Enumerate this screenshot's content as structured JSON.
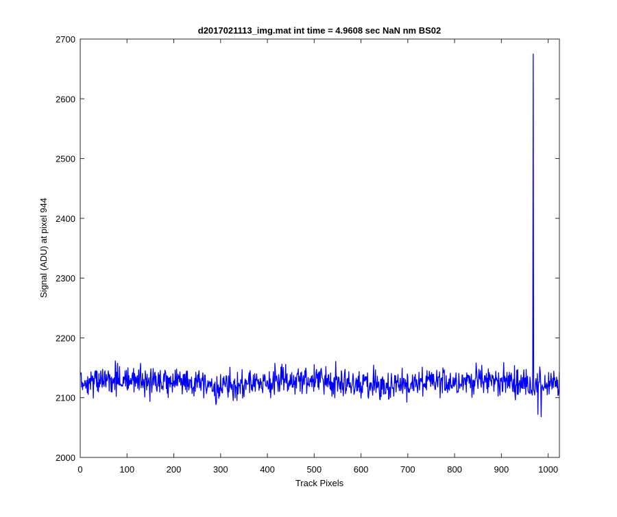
{
  "chart_data": {
    "type": "line",
    "title": "d2017021113_img.mat int time = 4.9608 sec  NaN nm BS02",
    "xlabel": "Track Pixels",
    "ylabel": "Signal (ADU) at pixel 944",
    "xlim": [
      0,
      1024
    ],
    "ylim": [
      2000,
      2700
    ],
    "xticks": [
      0,
      100,
      200,
      300,
      400,
      500,
      600,
      700,
      800,
      900,
      1000
    ],
    "yticks": [
      2000,
      2100,
      2200,
      2300,
      2400,
      2500,
      2600,
      2700
    ],
    "grid": false,
    "legend": "none",
    "series": [
      {
        "color": "#0000ff",
        "n_points": 1024,
        "baseline_mean": 2125,
        "noise_range": [
          2083,
          2170
        ],
        "spike": {
          "x": 968,
          "y": 2675
        },
        "dips": [
          {
            "x": 978,
            "y": 2072
          },
          {
            "x": 985,
            "y": 2068
          }
        ]
      }
    ]
  }
}
